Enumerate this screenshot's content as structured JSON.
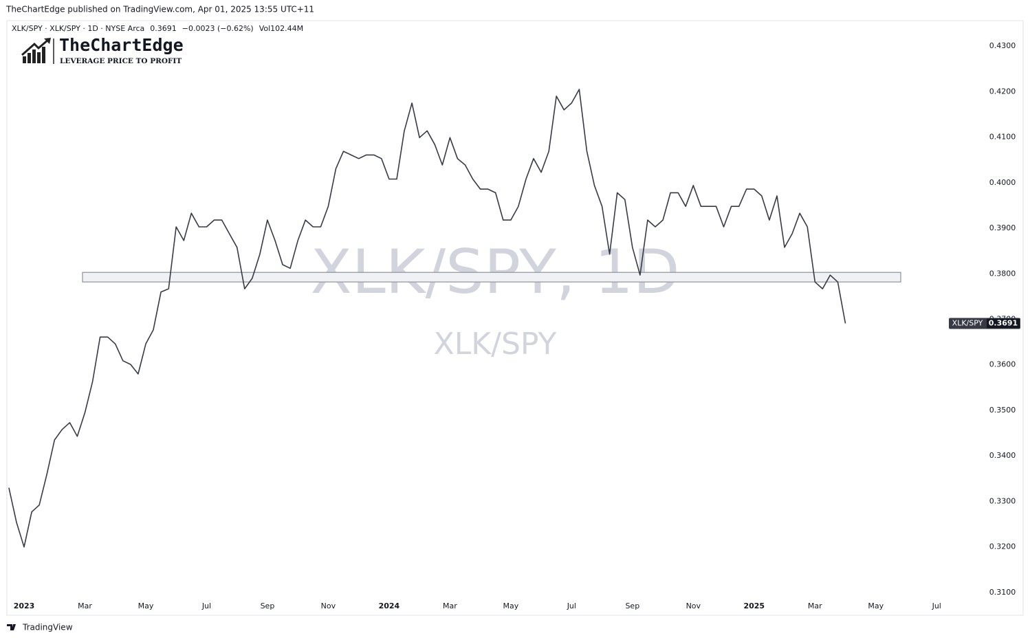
{
  "header": {
    "published": "TheChartEdge published on TradingView.com, Apr 01, 2025 13:55 UTC+11",
    "symbol": "XLK/SPY · XLK/SPY · 1D · NYSE Arca",
    "last": 0.3691,
    "change": "−0.0023 (−0.62%)",
    "volume": "Vol102.44M"
  },
  "logo": {
    "name": "TheChartEdge",
    "tagline": "LEVERAGE PRICE TO PROFIT"
  },
  "watermark": {
    "main": "XLK/SPY, 1D",
    "sub": "XLK/SPY"
  },
  "footer": "TradingView",
  "chart_data": {
    "type": "line",
    "categories": [
      null,
      null,
      "2023",
      null,
      null,
      null,
      null,
      null,
      null,
      null,
      "Mar",
      null,
      null,
      null,
      null,
      null,
      null,
      null,
      "May",
      null,
      null,
      null,
      null,
      null,
      null,
      null,
      "Jul",
      null,
      null,
      null,
      null,
      null,
      null,
      null,
      "Sep",
      null,
      null,
      null,
      null,
      null,
      null,
      null,
      "Nov",
      null,
      null,
      null,
      null,
      null,
      null,
      null,
      "2024",
      null,
      null,
      null,
      null,
      null,
      null,
      null,
      "Mar",
      null,
      null,
      null,
      null,
      null,
      null,
      null,
      "May",
      null,
      null,
      null,
      null,
      null,
      null,
      null,
      "Jul",
      null,
      null,
      null,
      null,
      null,
      null,
      null,
      "Sep",
      null,
      null,
      null,
      null,
      null,
      null,
      null,
      "Nov",
      null,
      null,
      null,
      null,
      null,
      null,
      null,
      "2025",
      null,
      null,
      null,
      null,
      null,
      null,
      null,
      "Mar",
      null,
      null,
      null,
      null,
      null,
      null,
      null,
      "May",
      null,
      null,
      null,
      null,
      null,
      null,
      null,
      "Jul",
      null,
      null,
      null
    ],
    "series": [
      {
        "name": "XLK/SPY",
        "color": "#363a45",
        "values": [
          0.333,
          0.3254,
          0.32,
          0.3277,
          0.3292,
          0.336,
          0.3435,
          0.3458,
          0.3473,
          0.3443,
          0.3495,
          0.3563,
          0.3661,
          0.3661,
          0.3646,
          0.3609,
          0.3601,
          0.358,
          0.3646,
          0.3677,
          0.376,
          0.3767,
          0.3903,
          0.3873,
          0.3933,
          0.3903,
          0.3903,
          0.3918,
          0.3918,
          0.3888,
          0.3858,
          0.3767,
          0.379,
          0.3843,
          0.3918,
          0.3873,
          0.382,
          0.3812,
          0.3873,
          0.3918,
          0.3903,
          0.3903,
          0.3948,
          0.4031,
          0.4069,
          0.4061,
          0.4053,
          0.4061,
          0.4061,
          0.4053,
          0.4008,
          0.4008,
          0.4114,
          0.4175,
          0.4099,
          0.4114,
          0.4084,
          0.4039,
          0.4099,
          0.4053,
          0.4039,
          0.4008,
          0.3986,
          0.3986,
          0.3978,
          0.3918,
          0.3918,
          0.3948,
          0.4008,
          0.4053,
          0.4023,
          0.4069,
          0.419,
          0.416,
          0.4175,
          0.4205,
          0.4069,
          0.3994,
          0.3948,
          0.3843,
          0.3978,
          0.3963,
          0.3858,
          0.3797,
          0.3918,
          0.3903,
          0.3918,
          0.3978,
          0.3978,
          0.3948,
          0.3994,
          0.3948,
          0.3948,
          0.3948,
          0.3903,
          0.3948,
          0.3948,
          0.3986,
          0.3986,
          0.3971,
          0.3918,
          0.3971,
          0.3858,
          0.3888,
          0.3933,
          0.3903,
          0.3782,
          0.3767,
          0.3797,
          0.3782,
          0.3691,
          null,
          null,
          null,
          null,
          null,
          null,
          null,
          null,
          null,
          null,
          null,
          null,
          null,
          null,
          null
        ]
      }
    ],
    "support_zone": [
      0.3782,
      0.3803
    ],
    "ylim": [
      0.305,
      0.4356
    ],
    "yticks": [
      {
        "value": 0.31,
        "label": "0.3100"
      },
      {
        "value": 0.32,
        "label": "0.3200"
      },
      {
        "value": 0.33,
        "label": "0.3300"
      },
      {
        "value": 0.34,
        "label": "0.3400"
      },
      {
        "value": 0.35,
        "label": "0.3500"
      },
      {
        "value": 0.36,
        "label": "0.3600"
      },
      {
        "value": 0.37,
        "label": "0.3700"
      },
      {
        "value": 0.38,
        "label": "0.3800"
      },
      {
        "value": 0.39,
        "label": "0.3900"
      },
      {
        "value": 0.4,
        "label": "0.4000"
      },
      {
        "value": 0.41,
        "label": "0.4100"
      },
      {
        "value": 0.42,
        "label": "0.4200"
      },
      {
        "value": 0.43,
        "label": "0.4300"
      }
    ],
    "grid": false
  }
}
